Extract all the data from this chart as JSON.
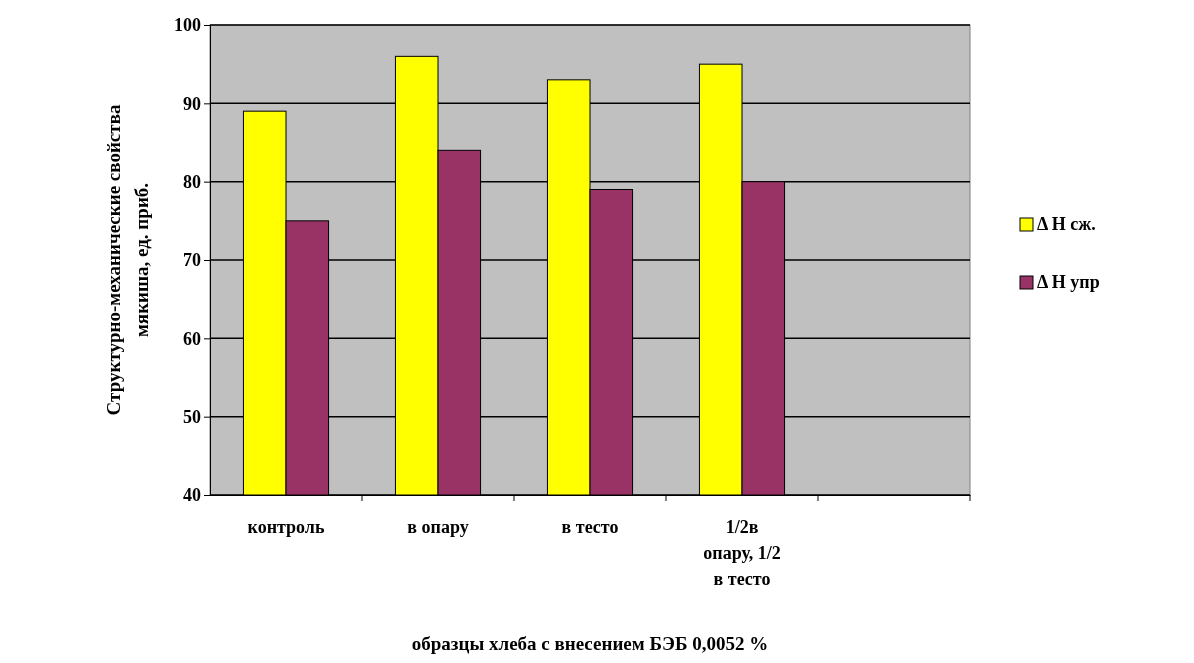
{
  "chart_data": {
    "type": "bar",
    "xlabel": "образцы хлеба  с внесением  БЭБ 0,0052 %",
    "ylabel": "Структурно-механические свойства мякиша, ед. приб.",
    "categories": [
      "контроль",
      "в опару",
      "в тесто",
      "1/2в опару, 1/2 в тесто",
      null
    ],
    "series": [
      {
        "name": "Δ Н сж.",
        "color": "#ffff00",
        "values": [
          89,
          96,
          93,
          95,
          null
        ]
      },
      {
        "name": "Δ Н упр",
        "color": "#993366",
        "values": [
          75,
          84,
          79,
          80,
          null
        ]
      }
    ],
    "ylim": [
      40,
      100
    ],
    "yticks": [
      40,
      50,
      60,
      70,
      80,
      90,
      100
    ],
    "grid": "y",
    "legend": "right"
  }
}
